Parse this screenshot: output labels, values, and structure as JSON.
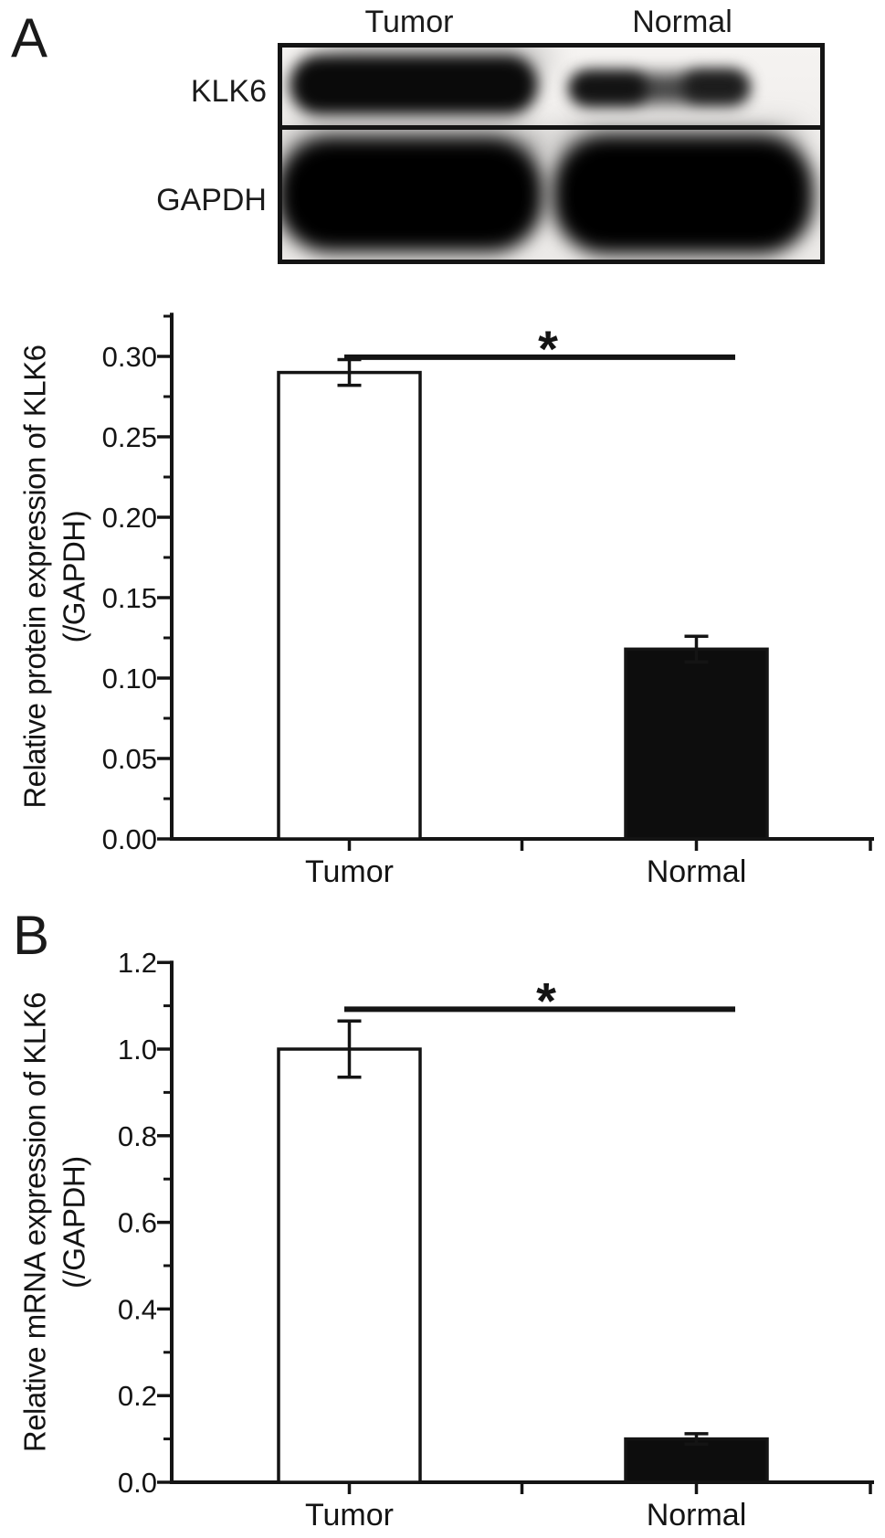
{
  "figure": {
    "panels": [
      {
        "id": "A",
        "label": "A"
      },
      {
        "id": "B",
        "label": "B"
      }
    ]
  },
  "blot": {
    "col_labels": [
      "Tumor",
      "Normal"
    ],
    "row_labels": [
      "KLK6",
      "GAPDH"
    ]
  },
  "chart_data": [
    {
      "type": "bar",
      "panel": "A",
      "title": "",
      "categories": [
        "Tumor",
        "Normal"
      ],
      "values": [
        0.29,
        0.118
      ],
      "errors": [
        0.008,
        0.008
      ],
      "bar_styles": [
        "open",
        "filled"
      ],
      "ylabel": "Relative protein expression of KLK6 (/GAPDH)",
      "ylabel_lines": [
        "Relative protein expression of KLK6",
        "(/GAPDH)"
      ],
      "xlabel": "",
      "ylim": [
        0,
        0.326
      ],
      "ytick_step": 0.05,
      "yminor_step": 0.025,
      "ytick_decimals": 2,
      "grid": false,
      "legend_position": "none",
      "significance": {
        "label": "*",
        "y_value": 0.2995
      }
    },
    {
      "type": "bar",
      "panel": "B",
      "title": "",
      "categories": [
        "Tumor",
        "Normal"
      ],
      "values": [
        1.0,
        0.1
      ],
      "errors": [
        0.065,
        0.012
      ],
      "bar_styles": [
        "open",
        "filled"
      ],
      "ylabel": "Relative mRNA expression of KLK6 (/GAPDH)",
      "ylabel_lines": [
        "Relative mRNA expression of KLK6",
        "(/GAPDH)"
      ],
      "xlabel": "",
      "ylim": [
        0,
        1.2
      ],
      "ytick_step": 0.2,
      "yminor_step": 0.1,
      "ytick_decimals": 1,
      "grid": false,
      "legend_position": "none",
      "significance": {
        "label": "*",
        "y_value": 1.092
      }
    }
  ],
  "colors": {
    "ink": "#141414",
    "bar_open_fill": "#ffffff",
    "bar_filled_fill": "#0d0d0d",
    "background": "#ffffff"
  }
}
